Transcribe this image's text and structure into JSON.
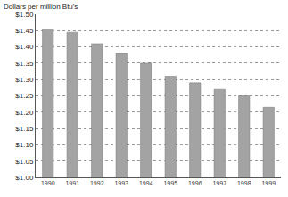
{
  "chart_data": {
    "type": "bar",
    "y_label": "Dollars per million Btu's",
    "categories": [
      "1990",
      "1991",
      "1992",
      "1993",
      "1994",
      "1995",
      "1996",
      "1997",
      "1998",
      "1999"
    ],
    "values": [
      1.455,
      1.445,
      1.41,
      1.38,
      1.35,
      1.31,
      1.29,
      1.27,
      1.25,
      1.215
    ],
    "color": "#a3a3a3",
    "ylim": [
      1.0,
      1.5
    ],
    "yticks": [
      {
        "value": 1.0,
        "label": "$1.00"
      },
      {
        "value": 1.05,
        "label": "$1.05"
      },
      {
        "value": 1.1,
        "label": "$1.10"
      },
      {
        "value": 1.15,
        "label": "$1.15"
      },
      {
        "value": 1.2,
        "label": "$1.20"
      },
      {
        "value": 1.25,
        "label": "$1.25"
      },
      {
        "value": 1.3,
        "label": "$1.30"
      },
      {
        "value": 1.35,
        "label": "$1.35"
      },
      {
        "value": 1.4,
        "label": "$1.40"
      },
      {
        "value": 1.45,
        "label": "$1.45"
      },
      {
        "value": 1.5,
        "label": "$1.50"
      }
    ],
    "grid": true
  }
}
